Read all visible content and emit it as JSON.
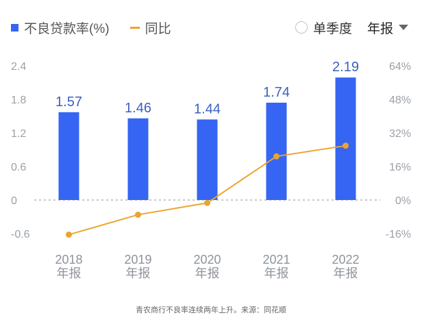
{
  "legend": {
    "bar_label": "不良贷款率(%)",
    "line_label": "同比"
  },
  "controls": {
    "single_quarter_label": "单季度",
    "period_label": "年报"
  },
  "footer": {
    "note": "青农商行不良率连续两年上升。来源：同花顺"
  },
  "colors": {
    "bar": "#3565f2",
    "line": "#eba42f",
    "label": "#3b5fc0",
    "axis_text": "#9aa0a8"
  },
  "chart_data": {
    "type": "bar",
    "categories": [
      "2018\n年报",
      "2019\n年报",
      "2020\n年报",
      "2021\n年报",
      "2022\n年报"
    ],
    "series": [
      {
        "name": "不良贷款率(%)",
        "type": "bar",
        "axis": "left",
        "values": [
          1.57,
          1.46,
          1.44,
          1.74,
          2.19
        ]
      },
      {
        "name": "同比",
        "type": "line",
        "axis": "right",
        "values": [
          -16.5,
          -7.0,
          -1.4,
          20.8,
          25.9
        ]
      }
    ],
    "y_left": {
      "ticks": [
        "2.4",
        "1.8",
        "1.2",
        "0.6",
        "0",
        "-0.6"
      ],
      "lim": [
        -0.6,
        2.4
      ]
    },
    "y_right": {
      "ticks": [
        "64%",
        "48%",
        "32%",
        "16%",
        "0%",
        "-16%"
      ],
      "lim": [
        -16,
        64
      ]
    },
    "grid": "dashed zero line only",
    "legend_position": "top-left"
  }
}
